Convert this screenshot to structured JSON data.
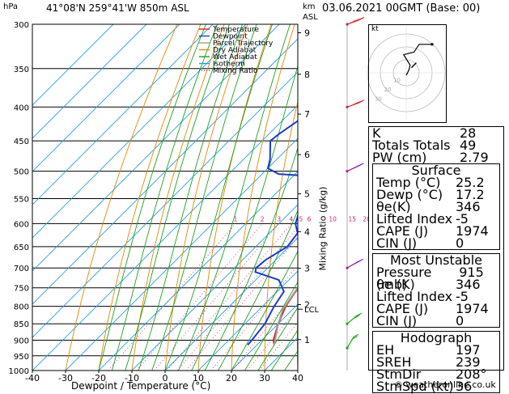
{
  "header": {
    "hpa_label": "hPa",
    "location": "41°08'N  259°41'W  850m  ASL",
    "km_label": "km",
    "asl_label": "ASL",
    "datetime": "03.06.2021  00GMT  (Base: 00)"
  },
  "legend": [
    {
      "label": "Temperature",
      "color": "#e02020",
      "style": "solid"
    },
    {
      "label": "Dewpoint",
      "color": "#1a3ad8",
      "style": "solid"
    },
    {
      "label": "Parcel Trajectory",
      "color": "#a0a0a0",
      "style": "solid"
    },
    {
      "label": "Dry Adiabat",
      "color": "#e08a00",
      "style": "solid"
    },
    {
      "label": "Wet Adiabat",
      "color": "#20a020",
      "style": "solid"
    },
    {
      "label": "Isotherm",
      "color": "#20a0d8",
      "style": "solid"
    },
    {
      "label": "Mixing Ratio",
      "color": "#c0207a",
      "style": "dotted"
    }
  ],
  "chart_data": {
    "type": "line",
    "xlabel": "Dewpoint / Temperature (°C)",
    "ylabel": "hPa",
    "x_ticks": [
      -40,
      -30,
      -20,
      -10,
      0,
      10,
      20,
      30,
      40
    ],
    "p_levels": [
      300,
      350,
      400,
      450,
      500,
      550,
      600,
      650,
      700,
      750,
      800,
      850,
      900,
      950,
      1000
    ],
    "xlim": [
      -40,
      40
    ],
    "plim": [
      300,
      1000
    ],
    "km_ticks": [
      {
        "label": "9",
        "p": 309
      },
      {
        "label": "8",
        "p": 357
      },
      {
        "label": "7",
        "p": 410
      },
      {
        "label": "6",
        "p": 472
      },
      {
        "label": "5",
        "p": 541
      },
      {
        "label": "4",
        "p": 617
      },
      {
        "label": "3",
        "p": 701
      },
      {
        "label": "2",
        "p": 795
      },
      {
        "label": "1",
        "p": 898
      }
    ],
    "lcl": {
      "label": "LCL",
      "p": 808
    },
    "mixing_ratio_axis_label": "Mixing Ratio (g/kg)",
    "mixing_ratio_labels": [
      "1",
      "2",
      "3",
      "4",
      "5",
      "6",
      "10",
      "15",
      "20",
      "25"
    ],
    "mixing_ratio_values": [
      1,
      2,
      3,
      4,
      5,
      6,
      10,
      15,
      20,
      25
    ],
    "series": [
      {
        "name": "Temperature",
        "color": "#e02020",
        "points": [
          [
            1000,
            null
          ],
          [
            915,
            25.2
          ],
          [
            900,
            23.5
          ],
          [
            850,
            20.0
          ],
          [
            800,
            17.0
          ],
          [
            760,
            15.5
          ],
          [
            720,
            15.5
          ],
          [
            700,
            14.5
          ],
          [
            650,
            11.0
          ],
          [
            600,
            6.5
          ],
          [
            550,
            2.0
          ],
          [
            520,
            -2.0
          ],
          [
            505,
            -3.0
          ],
          [
            450,
            -8.5
          ],
          [
            400,
            -14.5
          ],
          [
            350,
            -21.5
          ],
          [
            320,
            -27.0
          ],
          [
            300,
            -30.5
          ]
        ]
      },
      {
        "name": "Dewpoint",
        "color": "#1a3ad8",
        "points": [
          [
            915,
            17.2
          ],
          [
            900,
            17.0
          ],
          [
            850,
            16.0
          ],
          [
            800,
            13.5
          ],
          [
            760,
            12.0
          ],
          [
            730,
            7.0
          ],
          [
            710,
            -2.5
          ],
          [
            700,
            -3.5
          ],
          [
            680,
            -3.0
          ],
          [
            650,
            -0.5
          ],
          [
            620,
            -1.5
          ],
          [
            600,
            -5.0
          ],
          [
            580,
            -7.0
          ],
          [
            560,
            -7.0
          ],
          [
            540,
            -9.5
          ],
          [
            525,
            -10.5
          ],
          [
            510,
            -10.5
          ],
          [
            505,
            -25.0
          ],
          [
            495,
            -30.0
          ],
          [
            480,
            -32.0
          ],
          [
            450,
            -37.5
          ],
          [
            440,
            -37.0
          ],
          [
            400,
            -33.5
          ],
          [
            360,
            -35.0
          ],
          [
            345,
            -28.0
          ],
          [
            325,
            -23.0
          ],
          [
            310,
            -22.0
          ],
          [
            300,
            -22.5
          ]
        ]
      },
      {
        "name": "Parcel Trajectory",
        "color": "#a0a0a0",
        "points": [
          [
            915,
            25.2
          ],
          [
            850,
            20.0
          ],
          [
            808,
            17.0
          ],
          [
            750,
            15.0
          ],
          [
            700,
            13.0
          ],
          [
            650,
            10.0
          ],
          [
            600,
            6.5
          ],
          [
            550,
            3.0
          ],
          [
            500,
            -1.5
          ],
          [
            450,
            -6.5
          ],
          [
            400,
            -12.0
          ],
          [
            370,
            -16.0
          ]
        ]
      }
    ]
  },
  "hodograph": {
    "label": "kt",
    "ring_labels": [
      "10",
      "20",
      "30"
    ],
    "points_kt": [
      [
        0,
        -2
      ],
      [
        2,
        2
      ],
      [
        3,
        6
      ],
      [
        -2,
        14
      ],
      [
        6,
        16
      ],
      [
        10,
        22
      ],
      [
        20,
        22
      ]
    ],
    "storm_motion_kt": [
      4,
      4
    ]
  },
  "wind_barbs": [
    {
      "p": 300,
      "dir": 250,
      "speed": 45
    },
    {
      "p": 400,
      "dir": 250,
      "speed": 40
    },
    {
      "p": 500,
      "dir": 245,
      "speed": 40
    },
    {
      "p": 700,
      "dir": 240,
      "speed": 30
    },
    {
      "p": 850,
      "dir": 230,
      "speed": 30
    },
    {
      "p": 925,
      "dir": 210,
      "speed": 15
    }
  ],
  "indices": [
    {
      "label": "K",
      "value": "28"
    },
    {
      "label": "Totals Totals",
      "value": "49"
    },
    {
      "label": "PW (cm)",
      "value": "2.79"
    }
  ],
  "surface": {
    "title": "Surface",
    "rows": [
      {
        "label": "Temp (°C)",
        "value": "25.2"
      },
      {
        "label": "Dewp (°C)",
        "value": "17.2"
      },
      {
        "label": "θe(K)",
        "value": "346"
      },
      {
        "label": "Lifted Index",
        "value": "-5"
      },
      {
        "label": "CAPE (J)",
        "value": "1974"
      },
      {
        "label": "CIN (J)",
        "value": "0"
      }
    ]
  },
  "most_unstable": {
    "title": "Most Unstable",
    "rows": [
      {
        "label": "Pressure (mb)",
        "value": "915"
      },
      {
        "label": "θe (K)",
        "value": "346"
      },
      {
        "label": "Lifted Index",
        "value": "-5"
      },
      {
        "label": "CAPE (J)",
        "value": "1974"
      },
      {
        "label": "CIN (J)",
        "value": "0"
      }
    ]
  },
  "hodo_params": {
    "title": "Hodograph",
    "rows": [
      {
        "label": "EH",
        "value": "197"
      },
      {
        "label": "SREH",
        "value": "239"
      },
      {
        "label": "StmDir",
        "value": "208°"
      },
      {
        "label": "StmSpd (kt)",
        "value": "36"
      }
    ]
  },
  "footer": "© weatheronline.co.uk"
}
